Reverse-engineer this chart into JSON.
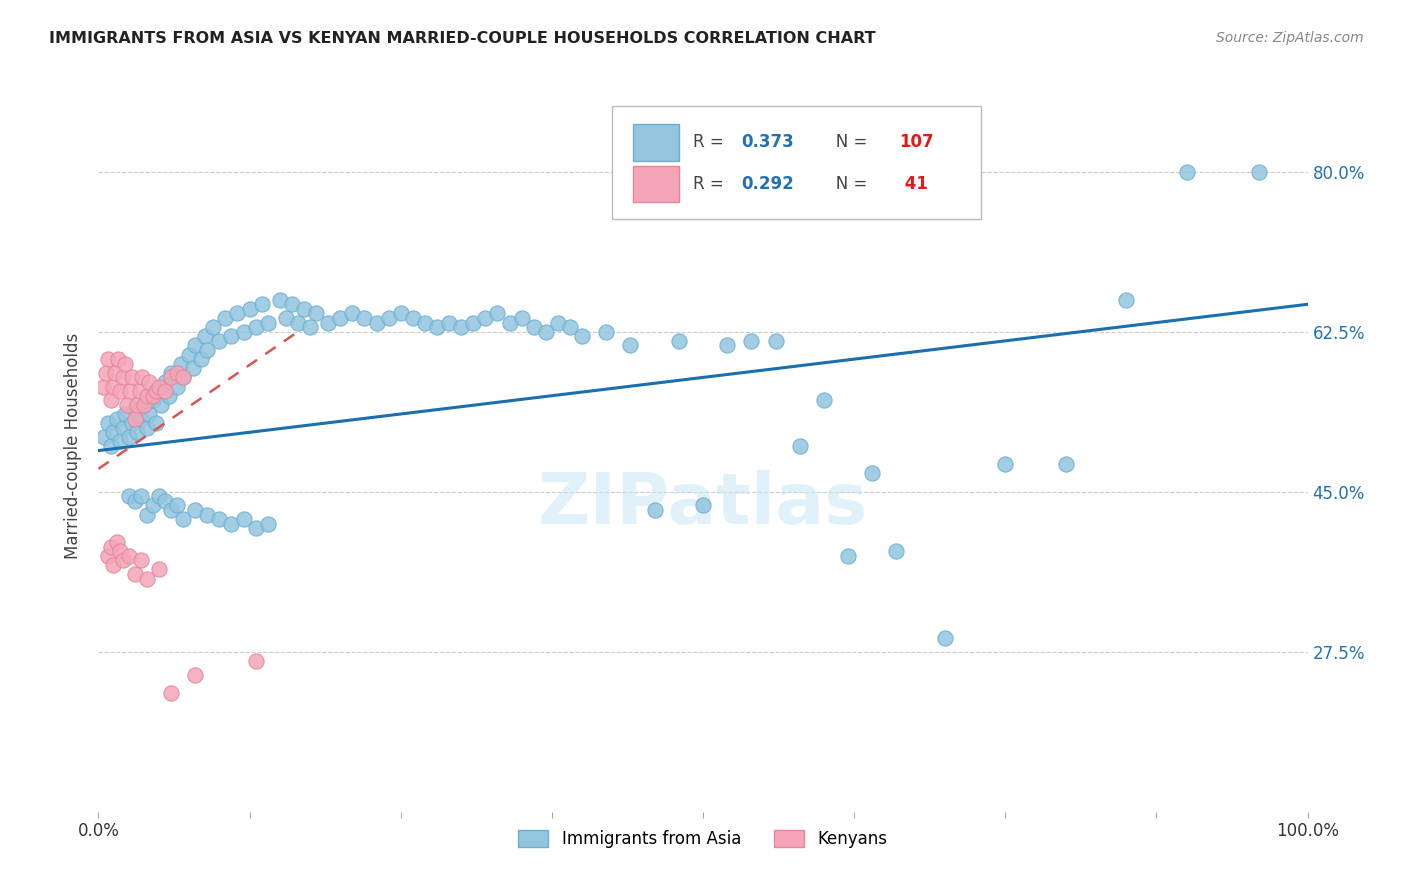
{
  "title": "IMMIGRANTS FROM ASIA VS KENYAN MARRIED-COUPLE HOUSEHOLDS CORRELATION CHART",
  "source": "Source: ZipAtlas.com",
  "ylabel": "Married-couple Households",
  "ytick_values": [
    0.275,
    0.45,
    0.625,
    0.8
  ],
  "ytick_labels": [
    "27.5%",
    "45.0%",
    "62.5%",
    "80.0%"
  ],
  "xlim": [
    0.0,
    1.0
  ],
  "ylim": [
    0.1,
    0.9
  ],
  "legend_color1": "#92c5de",
  "legend_color2": "#f4a6b8",
  "blue_color": "#92c5de",
  "pink_color": "#f4a6b8",
  "blue_line_color": "#1a6faf",
  "pink_line_color": "#d9534f",
  "watermark": "ZIPatlas",
  "asia_line": {
    "x0": 0.0,
    "y0": 0.495,
    "x1": 1.0,
    "y1": 0.655
  },
  "kenya_line": {
    "x0": 0.0,
    "y0": 0.475,
    "x1": 0.165,
    "y1": 0.625
  },
  "asia_x": [
    0.005,
    0.008,
    0.01,
    0.012,
    0.015,
    0.018,
    0.02,
    0.022,
    0.025,
    0.028,
    0.03,
    0.032,
    0.035,
    0.038,
    0.04,
    0.042,
    0.045,
    0.048,
    0.05,
    0.052,
    0.055,
    0.058,
    0.06,
    0.065,
    0.068,
    0.07,
    0.075,
    0.078,
    0.08,
    0.085,
    0.088,
    0.09,
    0.095,
    0.1,
    0.105,
    0.11,
    0.115,
    0.12,
    0.125,
    0.13,
    0.135,
    0.14,
    0.15,
    0.155,
    0.16,
    0.165,
    0.17,
    0.175,
    0.18,
    0.19,
    0.2,
    0.21,
    0.22,
    0.23,
    0.24,
    0.25,
    0.26,
    0.27,
    0.28,
    0.29,
    0.3,
    0.31,
    0.32,
    0.33,
    0.34,
    0.35,
    0.36,
    0.37,
    0.38,
    0.39,
    0.4,
    0.42,
    0.44,
    0.46,
    0.48,
    0.5,
    0.52,
    0.54,
    0.56,
    0.58,
    0.6,
    0.62,
    0.64,
    0.66,
    0.7,
    0.75,
    0.8,
    0.85,
    0.9,
    0.96,
    0.025,
    0.03,
    0.035,
    0.04,
    0.045,
    0.05,
    0.055,
    0.06,
    0.065,
    0.07,
    0.08,
    0.09,
    0.1,
    0.11,
    0.12,
    0.13,
    0.14
  ],
  "asia_y": [
    0.51,
    0.525,
    0.5,
    0.515,
    0.53,
    0.505,
    0.52,
    0.535,
    0.51,
    0.525,
    0.54,
    0.515,
    0.53,
    0.545,
    0.52,
    0.535,
    0.55,
    0.525,
    0.56,
    0.545,
    0.57,
    0.555,
    0.58,
    0.565,
    0.59,
    0.575,
    0.6,
    0.585,
    0.61,
    0.595,
    0.62,
    0.605,
    0.63,
    0.615,
    0.64,
    0.62,
    0.645,
    0.625,
    0.65,
    0.63,
    0.655,
    0.635,
    0.66,
    0.64,
    0.655,
    0.635,
    0.65,
    0.63,
    0.645,
    0.635,
    0.64,
    0.645,
    0.64,
    0.635,
    0.64,
    0.645,
    0.64,
    0.635,
    0.63,
    0.635,
    0.63,
    0.635,
    0.64,
    0.645,
    0.635,
    0.64,
    0.63,
    0.625,
    0.635,
    0.63,
    0.62,
    0.625,
    0.61,
    0.43,
    0.615,
    0.435,
    0.61,
    0.615,
    0.615,
    0.5,
    0.55,
    0.38,
    0.47,
    0.385,
    0.29,
    0.48,
    0.48,
    0.66,
    0.8,
    0.8,
    0.445,
    0.44,
    0.445,
    0.425,
    0.435,
    0.445,
    0.44,
    0.43,
    0.435,
    0.42,
    0.43,
    0.425,
    0.42,
    0.415,
    0.42,
    0.41,
    0.415
  ],
  "kenya_x": [
    0.004,
    0.006,
    0.008,
    0.01,
    0.012,
    0.014,
    0.016,
    0.018,
    0.02,
    0.022,
    0.024,
    0.026,
    0.028,
    0.03,
    0.032,
    0.034,
    0.036,
    0.038,
    0.04,
    0.042,
    0.045,
    0.048,
    0.05,
    0.055,
    0.06,
    0.065,
    0.07,
    0.008,
    0.01,
    0.012,
    0.015,
    0.018,
    0.02,
    0.025,
    0.03,
    0.035,
    0.04,
    0.05,
    0.06,
    0.08,
    0.13
  ],
  "kenya_y": [
    0.565,
    0.58,
    0.595,
    0.55,
    0.565,
    0.58,
    0.595,
    0.56,
    0.575,
    0.59,
    0.545,
    0.56,
    0.575,
    0.53,
    0.545,
    0.56,
    0.575,
    0.545,
    0.555,
    0.57,
    0.555,
    0.56,
    0.565,
    0.56,
    0.575,
    0.58,
    0.575,
    0.38,
    0.39,
    0.37,
    0.395,
    0.385,
    0.375,
    0.38,
    0.36,
    0.375,
    0.355,
    0.365,
    0.23,
    0.25,
    0.265
  ]
}
